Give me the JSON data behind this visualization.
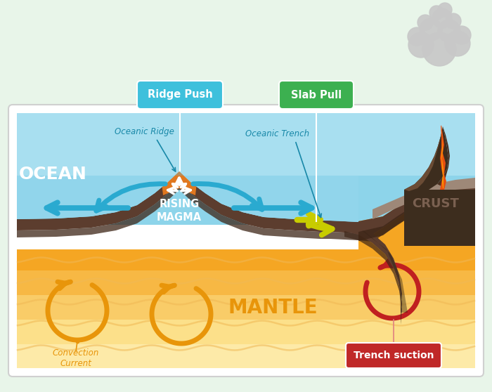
{
  "bg_color": "#e8f5e9",
  "diagram_bg": "#ffffff",
  "ocean_top": "#a8dff0",
  "ocean_bot": "#5cc0e0",
  "mantle_l1": "#f5a623",
  "mantle_l2": "#f7b844",
  "mantle_l3": "#f9cc68",
  "mantle_l4": "#fce08a",
  "mantle_l5": "#fdeaa8",
  "crust_top": "#5c3d2e",
  "crust_bot": "#3d2517",
  "ridge_orange": "#e07820",
  "subduct_shadow": "#3d3520",
  "volcano_dark": "#3d2d1e",
  "volcano_mid": "#6b4c35",
  "lava_orange": "#e85010",
  "lava_yellow": "#ffaa00",
  "smoke_col": "#c8c8c8",
  "blue_arrow": "#2aaad0",
  "yellow_arrow": "#c8cc00",
  "orange_circle": "#e8950a",
  "red_circle": "#c02020",
  "ridge_push_bg": "#3ec0dc",
  "slab_pull_bg": "#3cb050",
  "trench_bg": "#c02828",
  "label_ocean": "#e8f5ff",
  "label_crust": "#7a6050",
  "label_mantle": "#e8950a",
  "label_blue": "#1888a8",
  "convect_col": "#e8950a",
  "white": "#ffffff",
  "labels": {
    "ocean": "OCEAN",
    "crust": "CRUST",
    "mantle": "MANTLE",
    "rising": "RISING\nMAGMA",
    "ridge_push": "Ridge Push",
    "slab_pull": "Slab Pull",
    "trench": "Trench suction",
    "convection": "Convection\nCurrent",
    "oceanic_ridge": "Oceanic Ridge",
    "oceanic_trench": "Oceanic Trench"
  }
}
